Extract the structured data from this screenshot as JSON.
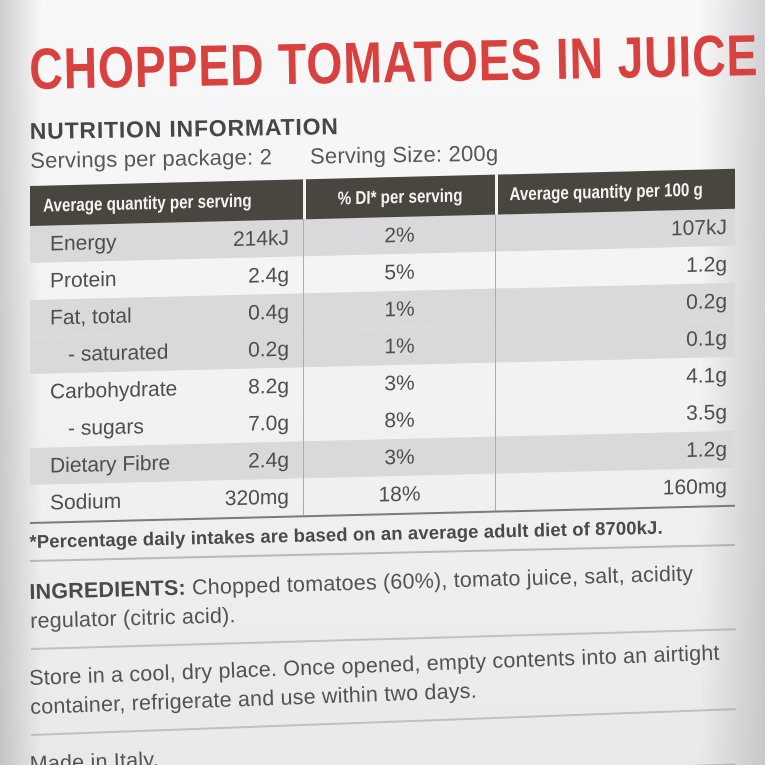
{
  "label": {
    "title": "CHOPPED TOMATOES IN JUICE",
    "nutrition_heading": "NUTRITION INFORMATION",
    "servings_per_package": "Servings per package: 2",
    "serving_size": "Serving Size: 200g",
    "table": {
      "headers": [
        "Average quantity per serving",
        "% DI* per serving",
        "Average quantity per 100 g"
      ],
      "rows": [
        {
          "name": "Energy",
          "per_serving": "214kJ",
          "di": "2%",
          "per_100g": "107kJ"
        },
        {
          "name": "Protein",
          "per_serving": "2.4g",
          "di": "5%",
          "per_100g": "1.2g"
        },
        {
          "name": "Fat, total",
          "per_serving": "0.4g",
          "di": "1%",
          "per_100g": "0.2g"
        },
        {
          "name": "- saturated",
          "per_serving": "0.2g",
          "di": "1%",
          "per_100g": "0.1g"
        },
        {
          "name": "Carbohydrate",
          "per_serving": "8.2g",
          "di": "3%",
          "per_100g": "4.1g"
        },
        {
          "name": "- sugars",
          "per_serving": "7.0g",
          "di": "8%",
          "per_100g": "3.5g"
        },
        {
          "name": "Dietary Fibre",
          "per_serving": "2.4g",
          "di": "3%",
          "per_100g": "1.2g"
        },
        {
          "name": "Sodium",
          "per_serving": "320mg",
          "di": "18%",
          "per_100g": "160mg"
        }
      ]
    },
    "footnote": "*Percentage daily intakes are based on an average adult diet of 8700kJ.",
    "ingredients_label": "INGREDIENTS:",
    "ingredients_text": "Chopped tomatoes (60%), tomato juice, salt, acidity regulator (citric acid).",
    "storage": "Store in a cool, dry place. Once opened, empty contents into an airtight container, refrigerate and use within two days.",
    "made_in": "Made in Italy.",
    "colors": {
      "accent_red": "#d8413e",
      "table_header_bg": "#49453f",
      "row_band_gray": "#d9d9db",
      "text_gray": "#504d4b"
    }
  }
}
